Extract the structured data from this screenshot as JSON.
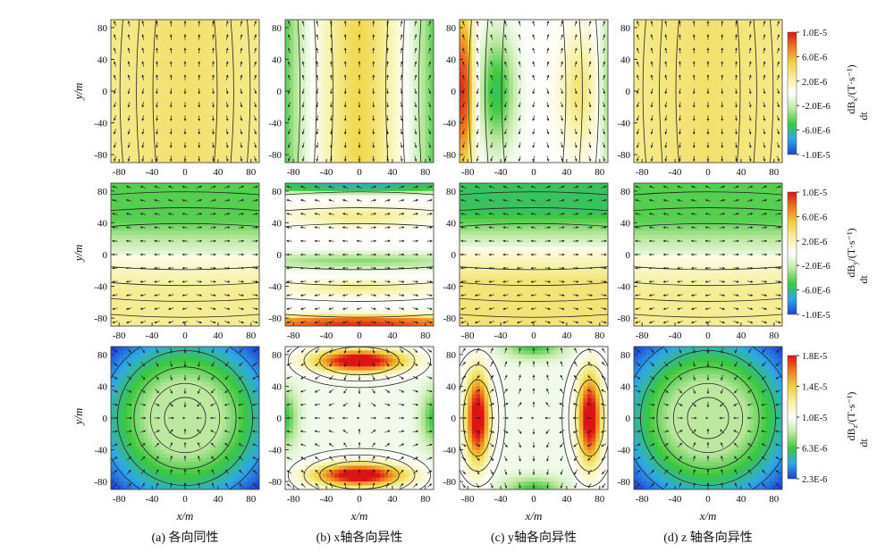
{
  "figure": {
    "rows": [
      {
        "ylabel": "y/m",
        "cbar_label_num": "dB",
        "cbar_label_sub": "x",
        "cbar_label_den": "dt",
        "cbar_unit": "/(T·s⁻¹)"
      },
      {
        "ylabel": "y/m",
        "cbar_label_num": "dB",
        "cbar_label_sub": "y",
        "cbar_label_den": "dt",
        "cbar_unit": "/(T·s⁻¹)"
      },
      {
        "ylabel": "y/m",
        "cbar_label_num": "dB",
        "cbar_label_sub": "z",
        "cbar_label_den": "dt",
        "cbar_unit": "/(T·s⁻¹)"
      }
    ],
    "xlabel": "x/m",
    "captions": [
      "(a) 各向同性",
      "(b) x轴各向异性",
      "(c) y轴各向异性",
      "(d) z 轴各向异性"
    ]
  },
  "chart_data": {
    "type": "heatmap",
    "panels_layout": "3 rows x 4 columns",
    "x_ticks": [
      -80,
      -40,
      0,
      40,
      80
    ],
    "y_ticks": [
      -80,
      -40,
      0,
      40,
      80
    ],
    "xlim": [
      -90,
      90
    ],
    "ylim": [
      -90,
      90
    ],
    "columns": [
      "(a) 各向同性",
      "(b) x轴各向异性",
      "(c) y轴各向异性",
      "(d) z 轴各向异性"
    ],
    "rows": [
      "dBx/dt",
      "dBy/dt",
      "dBz/dt"
    ],
    "colorbars": [
      {
        "ticks": [
          "1.0E-5",
          "6.0E-6",
          "2.0E-6",
          "-2.0E-6",
          "-6.0E-6",
          "-1.0E-5"
        ],
        "range": [
          -1e-05,
          1e-05
        ]
      },
      {
        "ticks": [
          "1.0E-5",
          "6.0E-6",
          "2.0E-6",
          "-2.0E-6",
          "-6.0E-6",
          "-1.0E-5"
        ],
        "range": [
          -1e-05,
          1e-05
        ]
      },
      {
        "ticks": [
          "1.8E-5",
          "1.4E-5",
          "1.0E-5",
          "6.3E-6",
          "2.3E-6"
        ],
        "range": [
          2.3e-06,
          1.8e-05
        ]
      }
    ],
    "colormap": [
      "#1f3fd6",
      "#2ea8e8",
      "#3cc83c",
      "#bde8a0",
      "#ffffff",
      "#f6f0a0",
      "#f0d23c",
      "#f07a1e",
      "#dc1414"
    ],
    "grid": false,
    "overlays": "contour lines and arrow vector field"
  }
}
